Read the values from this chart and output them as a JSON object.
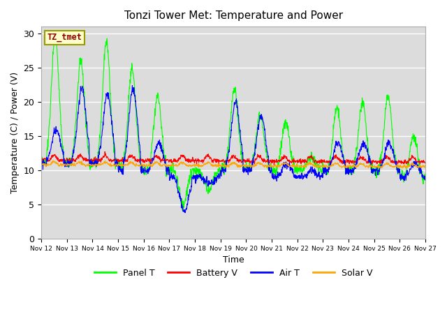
{
  "title": "Tonzi Tower Met: Temperature and Power",
  "xlabel": "Time",
  "ylabel": "Temperature (C) / Power (V)",
  "ylim": [
    0,
    31
  ],
  "xlim": [
    0,
    360
  ],
  "bg_color": "#dcdcdc",
  "fig_color": "#ffffff",
  "label_box": "TZ_tmet",
  "label_box_bg": "#ffffcc",
  "label_box_fc": "#8b0000",
  "x_tick_labels": [
    "Nov 12",
    "Nov 13",
    "Nov 14",
    "Nov 15",
    "Nov 16",
    "Nov 17",
    "Nov 18",
    "Nov 19",
    "Nov 20",
    "Nov 21",
    "Nov 22",
    "Nov 23",
    "Nov 24",
    "Nov 25",
    "Nov 26",
    "Nov 27"
  ],
  "x_tick_positions": [
    0,
    24,
    48,
    72,
    96,
    120,
    144,
    168,
    192,
    216,
    240,
    264,
    288,
    312,
    336,
    360
  ],
  "panel_color": "#00ff00",
  "battery_color": "#ff0000",
  "air_color": "#0000ff",
  "solar_color": "#ffa500",
  "grid_color": "#ffffff",
  "yticks": [
    0,
    5,
    10,
    15,
    20,
    25,
    30
  ],
  "panel_label": "Panel T",
  "battery_label": "Battery V",
  "air_label": "Air T",
  "solar_label": "Solar V"
}
